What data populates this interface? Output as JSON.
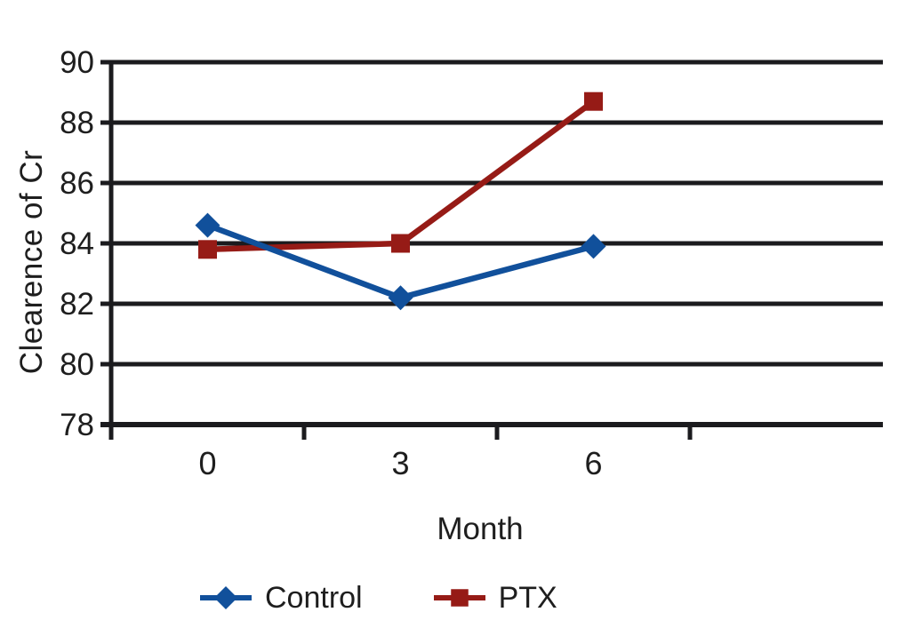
{
  "chart_data": {
    "type": "line",
    "title": "",
    "xlabel": "Month",
    "ylabel": "Clearence of Cr",
    "categories": [
      "0",
      "3",
      "6"
    ],
    "ylim": [
      78,
      90
    ],
    "y_ticks": [
      90,
      88,
      86,
      84,
      82,
      80,
      78
    ],
    "y_tick_step": 2,
    "category_slots": 4,
    "grid": "horizontal gridlines on, black",
    "legend_position": "bottom",
    "axis_color": "#1b1b1e",
    "text_color": "#1e1e1e",
    "series": [
      {
        "name": "Control",
        "marker": "diamond",
        "color": "#11509b",
        "values": [
          84.6,
          82.2,
          83.9
        ]
      },
      {
        "name": "PTX",
        "marker": "square",
        "color": "#961b16",
        "values": [
          83.8,
          84.0,
          88.7
        ]
      }
    ]
  }
}
